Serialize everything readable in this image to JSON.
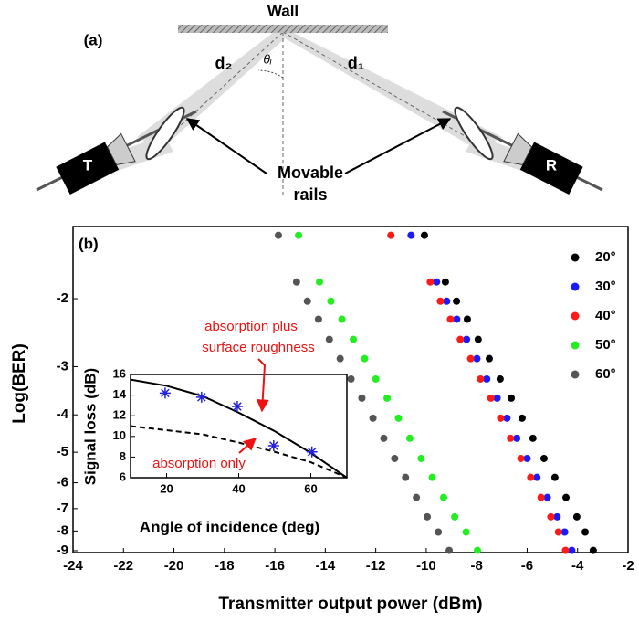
{
  "diagram": {
    "panel_label": "(a)",
    "wall": "Wall",
    "d2": "d₂",
    "d1": "d₁",
    "angle": "θᵢ",
    "transmitter": "T",
    "receiver": "R",
    "rails": [
      "Movable",
      "rails"
    ]
  },
  "chart_data": [
    {
      "type": "scatter",
      "panel_label": "(b)",
      "xlabel": "Transmitter output power (dBm)",
      "ylabel": "Log(BER)",
      "xlim": [
        -24,
        -2
      ],
      "xticks": [
        -24,
        -22,
        -20,
        -18,
        -16,
        -14,
        -12,
        -10,
        -8,
        -6,
        -4,
        -2
      ],
      "ylim": [
        -1.3,
        -9.1
      ],
      "yticks": [
        -2,
        -3,
        -4,
        -5,
        -6,
        -7,
        -8,
        -9
      ],
      "yscale": "log-negative",
      "legend": "upper right",
      "series": [
        {
          "name": "20°",
          "color": "#000000",
          "x": [
            -10.07,
            -9.24,
            -8.8,
            -8.37,
            -7.94,
            -7.5,
            -7.07,
            -6.63,
            -6.2,
            -5.77,
            -5.33,
            -4.9,
            -4.46,
            -4.03,
            -3.7,
            -3.38
          ],
          "values": [
            -1.37,
            -1.81,
            -2.03,
            -2.26,
            -2.55,
            -2.86,
            -3.23,
            -3.62,
            -4.08,
            -4.6,
            -5.19,
            -5.81,
            -6.55,
            -7.35,
            -8.05,
            -8.98
          ]
        },
        {
          "name": "30°",
          "color": "#1a1aff",
          "x": [
            -10.6,
            -9.59,
            -9.19,
            -8.79,
            -8.4,
            -7.99,
            -7.6,
            -7.19,
            -6.8,
            -6.41,
            -6.0,
            -5.61,
            -5.2,
            -4.81,
            -4.51,
            -4.23
          ],
          "values": [
            -1.37,
            -1.81,
            -2.03,
            -2.26,
            -2.55,
            -2.86,
            -3.23,
            -3.62,
            -4.08,
            -4.6,
            -5.19,
            -5.81,
            -6.55,
            -7.35,
            -8.05,
            -8.98
          ]
        },
        {
          "name": "40°",
          "color": "#ff1a1a",
          "x": [
            -11.4,
            -9.84,
            -9.44,
            -9.04,
            -8.65,
            -8.24,
            -7.85,
            -7.44,
            -7.05,
            -6.66,
            -6.25,
            -5.86,
            -5.45,
            -5.06,
            -4.76,
            -4.48
          ],
          "values": [
            -1.37,
            -1.81,
            -2.03,
            -2.26,
            -2.55,
            -2.86,
            -3.23,
            -3.62,
            -4.08,
            -4.6,
            -5.19,
            -5.81,
            -6.55,
            -7.35,
            -8.05,
            -8.98
          ]
        },
        {
          "name": "50°",
          "color": "#22ee22",
          "x": [
            -15.06,
            -14.23,
            -13.78,
            -13.34,
            -12.89,
            -12.44,
            -12.0,
            -11.55,
            -11.1,
            -10.65,
            -10.2,
            -9.76,
            -9.31,
            -8.87,
            -8.42,
            -7.97
          ],
          "values": [
            -1.37,
            -1.81,
            -2.03,
            -2.26,
            -2.55,
            -2.86,
            -3.23,
            -3.62,
            -4.08,
            -4.6,
            -5.19,
            -5.81,
            -6.55,
            -7.35,
            -8.05,
            -8.98
          ]
        },
        {
          "name": "60°",
          "color": "#555555",
          "x": [
            -15.86,
            -15.14,
            -14.71,
            -14.27,
            -13.84,
            -13.41,
            -12.98,
            -12.55,
            -12.11,
            -11.68,
            -11.25,
            -10.82,
            -10.39,
            -9.96,
            -9.52,
            -9.09
          ],
          "values": [
            -1.37,
            -1.81,
            -2.03,
            -2.26,
            -2.55,
            -2.86,
            -3.23,
            -3.62,
            -4.08,
            -4.6,
            -5.19,
            -5.81,
            -6.55,
            -7.35,
            -8.05,
            -8.98
          ]
        }
      ]
    },
    {
      "type": "line",
      "xlabel": "Angle of incidence (deg)",
      "ylabel": "Signal loss (dB)",
      "xlim": [
        10,
        70
      ],
      "xticks": [
        20,
        40,
        60
      ],
      "ylim": [
        6,
        16
      ],
      "yticks": [
        6,
        8,
        10,
        12,
        14,
        16
      ],
      "x": [
        10,
        20,
        30,
        40,
        50,
        60,
        70
      ],
      "series": [
        {
          "color": "#000000",
          "style": "solid",
          "values": [
            15.5,
            14.9,
            13.9,
            12.3,
            10.5,
            8.4,
            6.0
          ]
        },
        {
          "color": "#000000",
          "style": "dashed",
          "values": [
            11.0,
            10.6,
            10.2,
            9.4,
            8.5,
            7.5,
            6.0
          ]
        }
      ],
      "points": {
        "color": "#2222dd",
        "x": [
          19.6,
          29.7,
          39.6,
          49.7,
          60.3
        ],
        "values": [
          14.2,
          13.8,
          12.9,
          9.1,
          8.5
        ]
      },
      "annotations": [
        "absorption plus",
        "surface roughness",
        "absorption only"
      ]
    }
  ]
}
